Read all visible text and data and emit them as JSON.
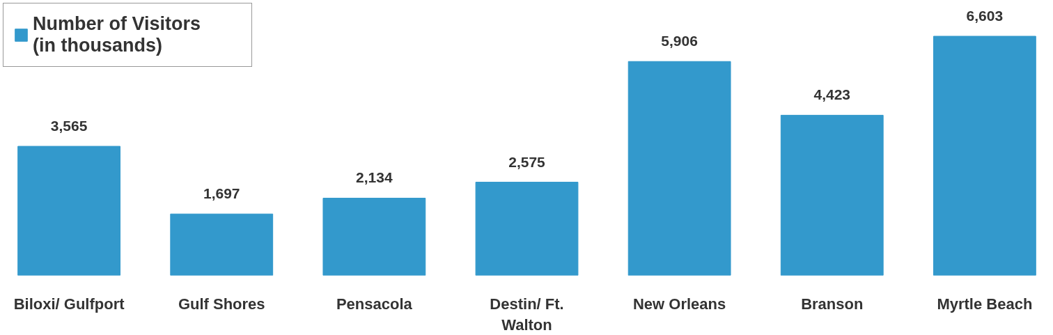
{
  "chart_data": {
    "type": "bar",
    "categories": [
      "Biloxi/ Gulfport",
      "Gulf Shores",
      "Pensacola",
      "Destin/ Ft. Walton",
      "New Orleans",
      "Branson",
      "Myrtle Beach"
    ],
    "series": [
      {
        "name": "Number of Visitors (in thousands)",
        "color": "#3399cc",
        "values": [
          3565,
          1697,
          2134,
          2575,
          5906,
          4423,
          6603
        ],
        "value_labels": [
          "3,565",
          "1,697",
          "2,134",
          "2,575",
          "5,906",
          "4,423",
          "6,603"
        ]
      }
    ],
    "legend": "top left",
    "grid": false
  }
}
